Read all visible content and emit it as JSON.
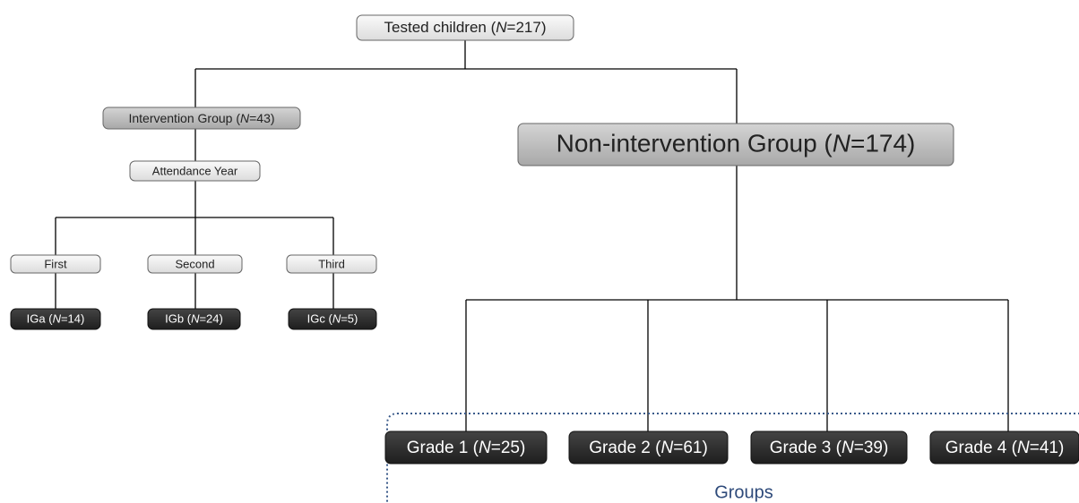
{
  "nodes": [
    {
      "label": "Tested children (N=217)"
    },
    {
      "label": "Intervention Group (N=43)"
    },
    {
      "label": "Attendance Year"
    },
    {
      "label": "First"
    },
    {
      "label": "Second"
    },
    {
      "label": "Third"
    },
    {
      "label": "IGa (N=14)"
    },
    {
      "label": "IGb (N=24)"
    },
    {
      "label": "IGc (N=5)"
    },
    {
      "label": "Non-intervention Group (N=174)"
    },
    {
      "label": "Grade 1 (N=25)"
    },
    {
      "label": "Grade 2 (N=61)"
    },
    {
      "label": "Grade 3 (N=39)"
    },
    {
      "label": "Grade 4 (N=41)"
    }
  ],
  "group_label": "Groups"
}
